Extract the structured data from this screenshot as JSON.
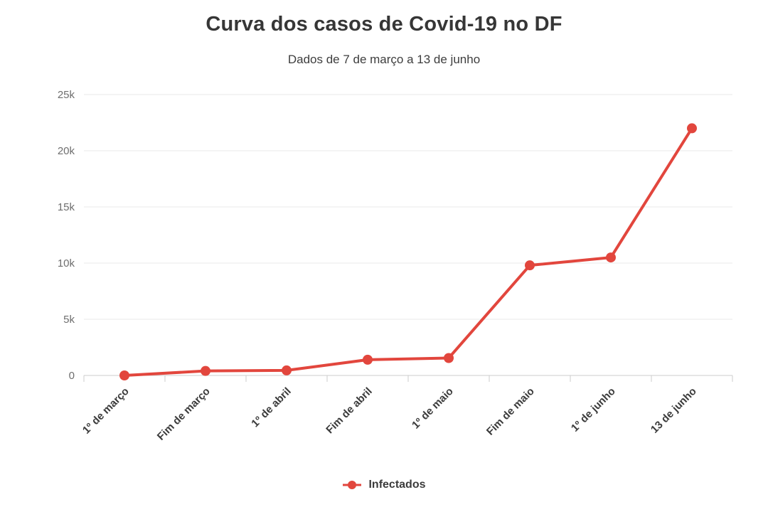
{
  "chart_data": {
    "type": "line",
    "title": "Curva dos casos de Covid-19 no DF",
    "subtitle": "Dados de 7 de março a 13 de junho",
    "categories": [
      "1º de março",
      "Fim de março",
      "1º de abril",
      "Fim de abril",
      "1º de maio",
      "Fim de maio",
      "1º de junho",
      "13 de junho"
    ],
    "series": [
      {
        "name": "Infectados",
        "color": "#e2463d",
        "values": [
          0,
          400,
          450,
          1400,
          1550,
          9800,
          10500,
          22000
        ]
      }
    ],
    "xlabel": "",
    "ylabel": "",
    "ylim": [
      0,
      25000
    ],
    "yticks": [
      0,
      5000,
      10000,
      15000,
      20000,
      25000
    ],
    "ytick_labels": [
      "0",
      "5k",
      "10k",
      "15k",
      "20k",
      "25k"
    ],
    "grid": true,
    "legend_position": "bottom",
    "colors": {
      "series": "#e2463d",
      "grid": "#e8e8e8",
      "axis": "#cccccc",
      "tick_label": "#6e6e6e",
      "category_label": "#3b3b3b"
    }
  }
}
